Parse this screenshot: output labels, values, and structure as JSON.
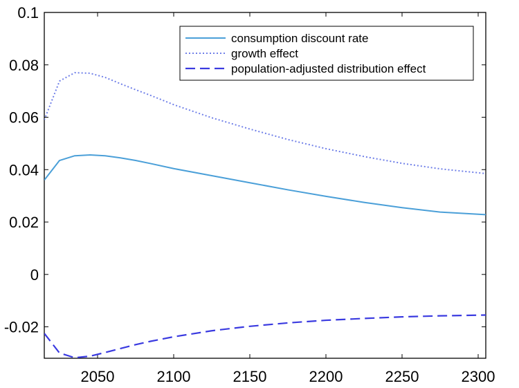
{
  "chart_data": {
    "type": "line",
    "title": "",
    "xlabel": "",
    "ylabel": "",
    "xlim": [
      2015,
      2305
    ],
    "ylim": [
      -0.032,
      0.1
    ],
    "xticks": [
      2050,
      2100,
      2150,
      2200,
      2250,
      2300
    ],
    "yticks": [
      -0.02,
      0,
      0.02,
      0.04,
      0.06,
      0.08,
      0.1
    ],
    "xtick_labels": [
      "2050",
      "2100",
      "2150",
      "2200",
      "2250",
      "2300"
    ],
    "ytick_labels": [
      "-0.02",
      "0",
      "0.02",
      "0.04",
      "0.06",
      "0.08",
      "0.1"
    ],
    "grid": false,
    "legend_position": "top-right",
    "series": [
      {
        "name": "consumption discount rate",
        "style": "solid",
        "color": "#4a9fd8",
        "x": [
          2015,
          2025,
          2035,
          2045,
          2055,
          2065,
          2075,
          2085,
          2100,
          2125,
          2150,
          2175,
          2200,
          2225,
          2250,
          2275,
          2305
        ],
        "y": [
          0.036,
          0.0435,
          0.0453,
          0.0456,
          0.0453,
          0.0445,
          0.0435,
          0.0423,
          0.0404,
          0.0377,
          0.035,
          0.0323,
          0.0298,
          0.0275,
          0.0255,
          0.0238,
          0.0228
        ]
      },
      {
        "name": "growth effect",
        "style": "dotted",
        "color": "#6f7fe8",
        "x": [
          2015,
          2025,
          2035,
          2045,
          2055,
          2065,
          2075,
          2085,
          2100,
          2125,
          2150,
          2175,
          2200,
          2225,
          2250,
          2275,
          2305
        ],
        "y": [
          0.059,
          0.0738,
          0.077,
          0.0768,
          0.0752,
          0.0728,
          0.0705,
          0.0683,
          0.0648,
          0.0598,
          0.0555,
          0.0515,
          0.048,
          0.045,
          0.0424,
          0.0403,
          0.0385
        ]
      },
      {
        "name": "population-adjusted distribution effect",
        "style": "dashed",
        "color": "#3a3ae0",
        "x": [
          2015,
          2025,
          2035,
          2045,
          2055,
          2065,
          2075,
          2085,
          2100,
          2125,
          2150,
          2175,
          2200,
          2225,
          2250,
          2275,
          2305
        ],
        "y": [
          -0.0225,
          -0.03,
          -0.0318,
          -0.0312,
          -0.0298,
          -0.0283,
          -0.0268,
          -0.0255,
          -0.0238,
          -0.0215,
          -0.0198,
          -0.0185,
          -0.0175,
          -0.0168,
          -0.0162,
          -0.0158,
          -0.0155
        ]
      }
    ]
  }
}
